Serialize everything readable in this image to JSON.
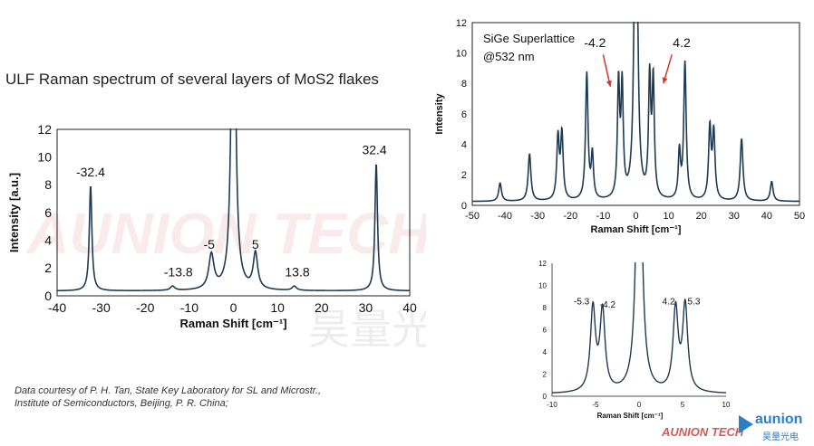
{
  "page": {
    "title": "ULF Raman spectrum of several layers of MoS2 flakes",
    "credit_line1": "Data courtesy of P. H. Tan, State Key Laboratory for SL and Microstr.,",
    "credit_line2": "Institute of Semiconductors, Beijing, P. R. China;",
    "watermark_en": "AUNION TECH",
    "watermark_cn": "昊量光电",
    "logo_text": "aunion",
    "logo_sub": "昊量光电",
    "colors": {
      "line": "#1e3a52",
      "axis": "#222222",
      "arrow": "#e0302a",
      "accent": "#2c7fc1"
    }
  },
  "chart_data": [
    {
      "id": "mos2",
      "type": "line",
      "xlabel": "Raman Shift [cm⁻¹]",
      "ylabel": "Intensity [a.u.]",
      "xlim": [
        -40,
        40
      ],
      "ylim": [
        0,
        12
      ],
      "xticks": [
        -40,
        -30,
        -20,
        -10,
        0,
        10,
        20,
        30,
        40
      ],
      "yticks": [
        0,
        2,
        4,
        6,
        8,
        10,
        12
      ],
      "baseline": 0.35,
      "peaks": [
        {
          "x": -32.4,
          "y": 7.6,
          "w": 0.35
        },
        {
          "x": -13.8,
          "y": 0.3,
          "w": 0.6
        },
        {
          "x": -5,
          "y": 2.5,
          "w": 0.7
        },
        {
          "x": 0,
          "y": 30,
          "w": 0.5
        },
        {
          "x": 5,
          "y": 2.6,
          "w": 0.6
        },
        {
          "x": 13.8,
          "y": 0.3,
          "w": 0.6
        },
        {
          "x": 32.4,
          "y": 9.2,
          "w": 0.35
        }
      ],
      "annotations": [
        {
          "text": "-32.4",
          "x": -32.4,
          "y": 8.6
        },
        {
          "text": "-13.8",
          "x": -12.5,
          "y": 1.4
        },
        {
          "text": "-5",
          "x": -5.5,
          "y": 3.4
        },
        {
          "text": "5",
          "x": 5,
          "y": 3.4
        },
        {
          "text": "13.8",
          "x": 14.5,
          "y": 1.4
        },
        {
          "text": "32.4",
          "x": 32,
          "y": 10.2
        }
      ]
    },
    {
      "id": "sige",
      "type": "line",
      "xlabel": "Raman Shift [cm⁻¹]",
      "ylabel": "Intensity",
      "xlim": [
        -50,
        50
      ],
      "ylim": [
        0,
        12
      ],
      "xticks": [
        -50,
        -40,
        -30,
        -20,
        -10,
        0,
        10,
        20,
        30,
        40,
        50
      ],
      "yticks": [
        0,
        2,
        4,
        6,
        8,
        10,
        12
      ],
      "baseline": 0.25,
      "inset_lines": [
        "SiGe Superlattice",
        "@532 nm"
      ],
      "peaks": [
        {
          "x": -41.5,
          "y": 1.2,
          "w": 0.5
        },
        {
          "x": -32.5,
          "y": 3.1,
          "w": 0.5
        },
        {
          "x": -23.8,
          "y": 4.1,
          "w": 0.45
        },
        {
          "x": -22.6,
          "y": 4.3,
          "w": 0.45
        },
        {
          "x": -15,
          "y": 8.3,
          "w": 0.45
        },
        {
          "x": -13.3,
          "y": 2.9,
          "w": 0.4
        },
        {
          "x": -5.3,
          "y": 7.5,
          "w": 0.4
        },
        {
          "x": -4.2,
          "y": 7.2,
          "w": 0.4
        },
        {
          "x": 0,
          "y": 30,
          "w": 0.5
        },
        {
          "x": 4.2,
          "y": 7.7,
          "w": 0.4
        },
        {
          "x": 5.3,
          "y": 7.6,
          "w": 0.4
        },
        {
          "x": 13.3,
          "y": 3.1,
          "w": 0.4
        },
        {
          "x": 15,
          "y": 9.0,
          "w": 0.45
        },
        {
          "x": 22.6,
          "y": 4.7,
          "w": 0.45
        },
        {
          "x": 23.8,
          "y": 4.4,
          "w": 0.45
        },
        {
          "x": 32.3,
          "y": 4.1,
          "w": 0.5
        },
        {
          "x": 41.5,
          "y": 1.3,
          "w": 0.5
        }
      ],
      "annotations": [
        {
          "text": "-4.2",
          "x": -12.5,
          "y": 10.4
        },
        {
          "text": "4.2",
          "x": 14,
          "y": 10.4
        }
      ],
      "arrows": [
        {
          "from": [
            -10,
            9.9
          ],
          "to": [
            -7.8,
            7.8
          ]
        },
        {
          "from": [
            11,
            9.9
          ],
          "to": [
            8.4,
            8.0
          ]
        }
      ]
    },
    {
      "id": "inset",
      "type": "line",
      "xlabel": "Raman Shift [cm⁻¹]",
      "xlim": [
        -10,
        10
      ],
      "ylim": [
        0,
        12
      ],
      "xticks": [
        -10,
        -5,
        0,
        5,
        10
      ],
      "yticks": [
        0,
        2,
        4,
        6,
        8,
        10,
        12
      ],
      "baseline": 0.2,
      "peaks": [
        {
          "x": -5.3,
          "y": 7.5,
          "w": 0.35
        },
        {
          "x": -4.2,
          "y": 7.2,
          "w": 0.35
        },
        {
          "x": 0,
          "y": 30,
          "w": 0.35
        },
        {
          "x": 4.2,
          "y": 7.4,
          "w": 0.35
        },
        {
          "x": 5.3,
          "y": 7.7,
          "w": 0.35
        }
      ],
      "annotations": [
        {
          "text": "-5.3",
          "x": -6.6,
          "y": 8.3
        },
        {
          "text": "-4.2",
          "x": -3.6,
          "y": 8.0
        },
        {
          "text": "4.2",
          "x": 3.4,
          "y": 8.3
        },
        {
          "text": "5.3",
          "x": 6.3,
          "y": 8.3
        }
      ]
    }
  ]
}
